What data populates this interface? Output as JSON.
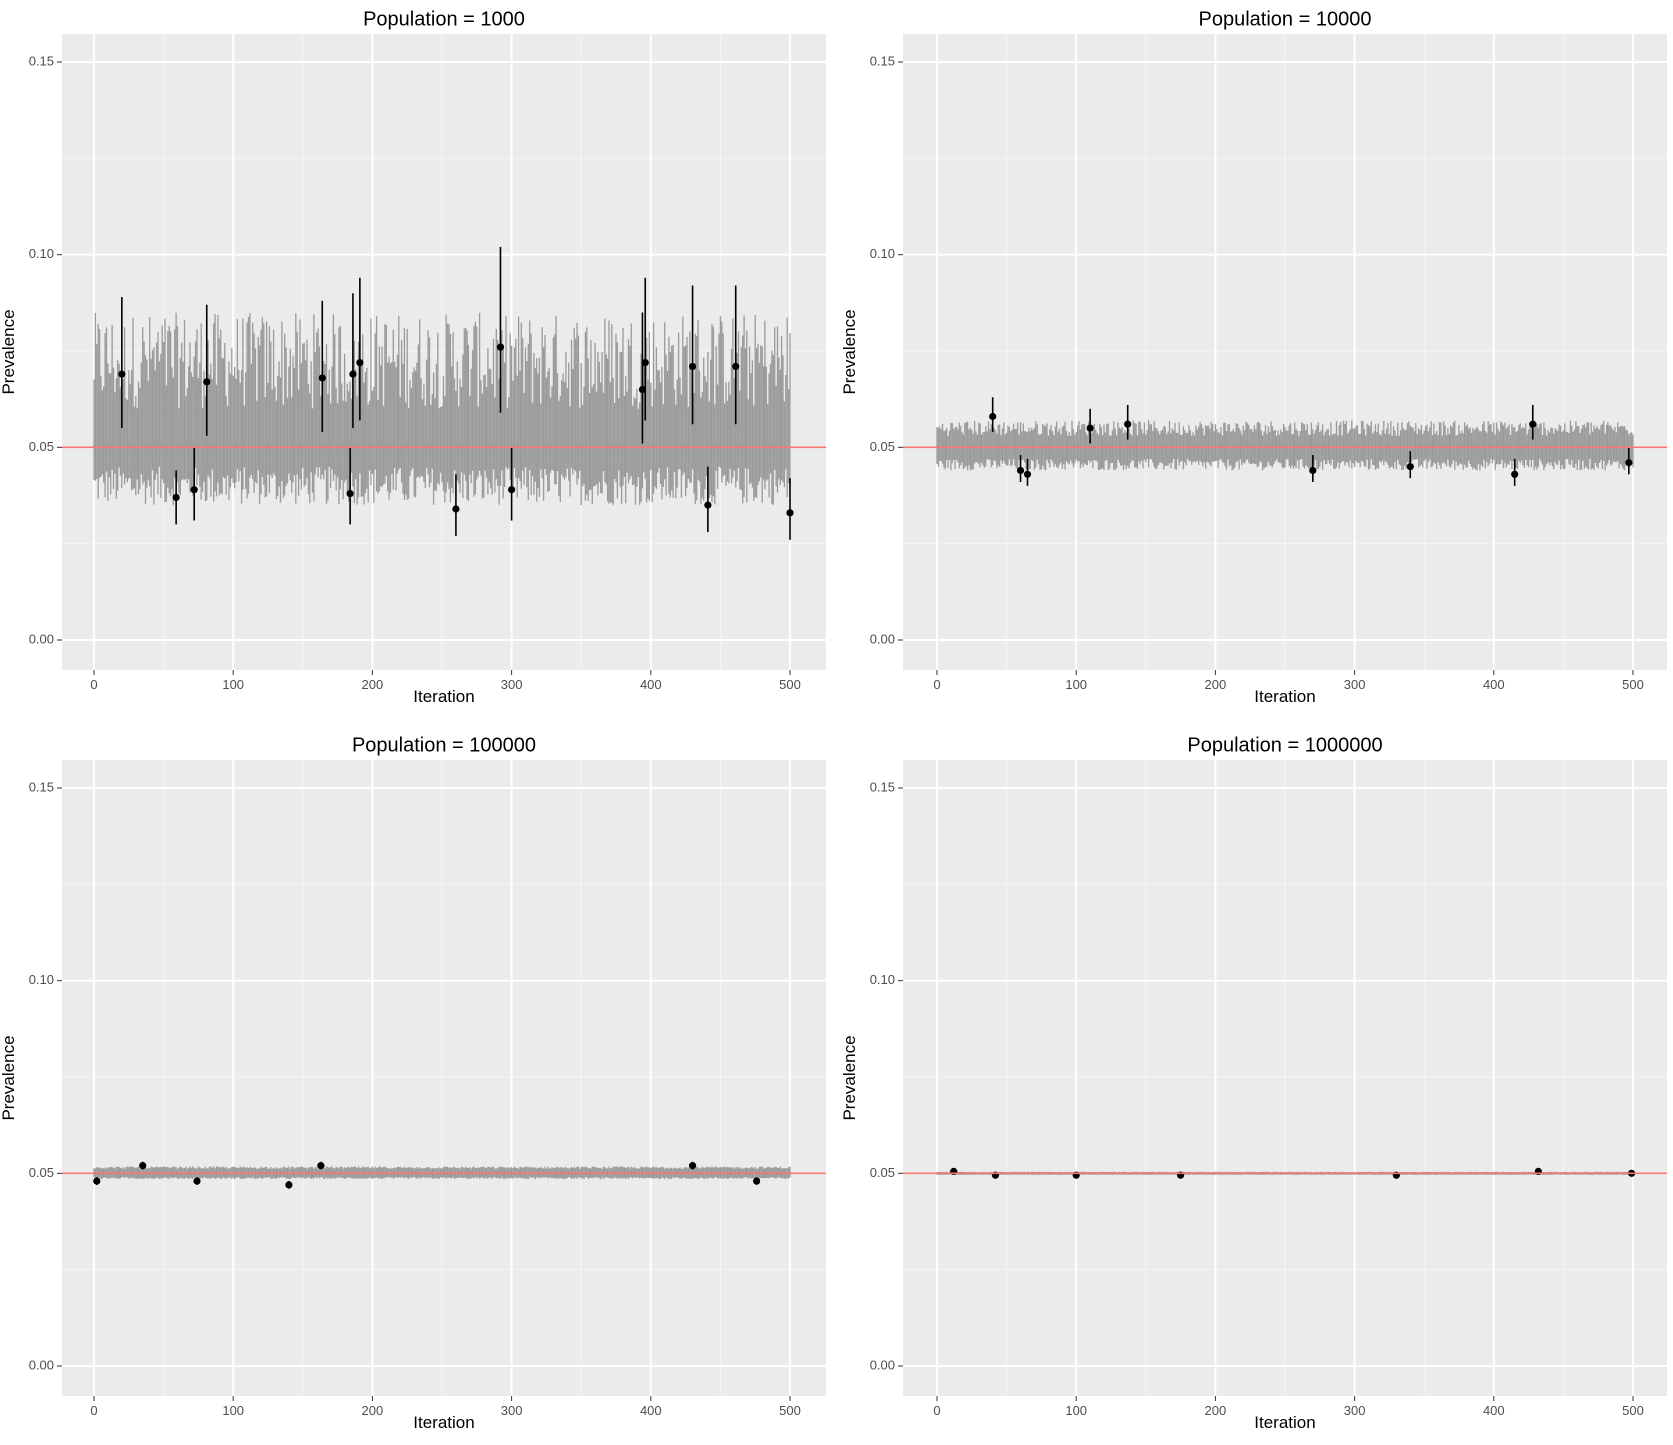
{
  "figure": {
    "colors": {
      "panel_background": "#ebebeb",
      "grid": "#ffffff",
      "band": "#9a9a9a",
      "point": "#000000",
      "reference_line": "#f8766d",
      "tick_text": "#4d4d4d"
    }
  },
  "chart_data": [
    {
      "type": "scatter",
      "title": "Population = 1000",
      "xlabel": "Iteration",
      "ylabel": "Prevalence",
      "xlim": [
        0,
        500
      ],
      "ylim": [
        0.0,
        0.15
      ],
      "x_ticks": [
        "0",
        "100",
        "200",
        "300",
        "400",
        "500"
      ],
      "y_ticks": [
        "0.00",
        "0.05",
        "0.10",
        "0.15"
      ],
      "grid": true,
      "reference_line": 0.05,
      "band": {
        "lower": [
          0.035,
          0.045
        ],
        "upper": [
          0.06,
          0.085
        ]
      },
      "points": [
        {
          "x": 20,
          "y": 0.069,
          "lo": 0.055,
          "hi": 0.089
        },
        {
          "x": 59,
          "y": 0.037,
          "lo": 0.03,
          "hi": 0.044
        },
        {
          "x": 72,
          "y": 0.039,
          "lo": 0.031,
          "hi": 0.05
        },
        {
          "x": 81,
          "y": 0.067,
          "lo": 0.053,
          "hi": 0.087
        },
        {
          "x": 164,
          "y": 0.068,
          "lo": 0.054,
          "hi": 0.088
        },
        {
          "x": 184,
          "y": 0.038,
          "lo": 0.03,
          "hi": 0.05
        },
        {
          "x": 186,
          "y": 0.069,
          "lo": 0.055,
          "hi": 0.09
        },
        {
          "x": 191,
          "y": 0.072,
          "lo": 0.057,
          "hi": 0.094
        },
        {
          "x": 260,
          "y": 0.034,
          "lo": 0.027,
          "hi": 0.043
        },
        {
          "x": 292,
          "y": 0.076,
          "lo": 0.059,
          "hi": 0.102
        },
        {
          "x": 300,
          "y": 0.039,
          "lo": 0.031,
          "hi": 0.05
        },
        {
          "x": 394,
          "y": 0.065,
          "lo": 0.051,
          "hi": 0.085
        },
        {
          "x": 396,
          "y": 0.072,
          "lo": 0.057,
          "hi": 0.094
        },
        {
          "x": 430,
          "y": 0.071,
          "lo": 0.056,
          "hi": 0.092
        },
        {
          "x": 441,
          "y": 0.035,
          "lo": 0.028,
          "hi": 0.045
        },
        {
          "x": 461,
          "y": 0.071,
          "lo": 0.056,
          "hi": 0.092
        },
        {
          "x": 500,
          "y": 0.033,
          "lo": 0.026,
          "hi": 0.042
        }
      ]
    },
    {
      "type": "scatter",
      "title": "Population = 10000",
      "xlabel": "Iteration",
      "ylabel": "Prevalence",
      "xlim": [
        0,
        500
      ],
      "ylim": [
        0.0,
        0.15
      ],
      "x_ticks": [
        "0",
        "100",
        "200",
        "300",
        "400",
        "500"
      ],
      "y_ticks": [
        "0.00",
        "0.05",
        "0.10",
        "0.15"
      ],
      "grid": true,
      "reference_line": 0.05,
      "band": {
        "lower": [
          0.044,
          0.047
        ],
        "upper": [
          0.053,
          0.057
        ]
      },
      "points": [
        {
          "x": 40,
          "y": 0.058,
          "lo": 0.054,
          "hi": 0.063
        },
        {
          "x": 60,
          "y": 0.044,
          "lo": 0.041,
          "hi": 0.048
        },
        {
          "x": 65,
          "y": 0.043,
          "lo": 0.04,
          "hi": 0.047
        },
        {
          "x": 110,
          "y": 0.055,
          "lo": 0.051,
          "hi": 0.06
        },
        {
          "x": 137,
          "y": 0.056,
          "lo": 0.052,
          "hi": 0.061
        },
        {
          "x": 270,
          "y": 0.044,
          "lo": 0.041,
          "hi": 0.048
        },
        {
          "x": 340,
          "y": 0.045,
          "lo": 0.042,
          "hi": 0.049
        },
        {
          "x": 415,
          "y": 0.043,
          "lo": 0.04,
          "hi": 0.047
        },
        {
          "x": 428,
          "y": 0.056,
          "lo": 0.052,
          "hi": 0.061
        },
        {
          "x": 497,
          "y": 0.046,
          "lo": 0.043,
          "hi": 0.05
        }
      ]
    },
    {
      "type": "scatter",
      "title": "Population = 100000",
      "xlabel": "Iteration",
      "ylabel": "Prevalence",
      "xlim": [
        0,
        500
      ],
      "ylim": [
        0.0,
        0.15
      ],
      "x_ticks": [
        "0",
        "100",
        "200",
        "300",
        "400",
        "500"
      ],
      "y_ticks": [
        "0.00",
        "0.05",
        "0.10",
        "0.15"
      ],
      "grid": true,
      "reference_line": 0.05,
      "band": {
        "lower": [
          0.0485,
          0.049
        ],
        "upper": [
          0.0512,
          0.0518
        ]
      },
      "points": [
        {
          "x": 2,
          "y": 0.048,
          "lo": 0.047,
          "hi": 0.049
        },
        {
          "x": 35,
          "y": 0.052,
          "lo": 0.051,
          "hi": 0.053
        },
        {
          "x": 74,
          "y": 0.048,
          "lo": 0.047,
          "hi": 0.049
        },
        {
          "x": 140,
          "y": 0.047,
          "lo": 0.046,
          "hi": 0.048
        },
        {
          "x": 163,
          "y": 0.052,
          "lo": 0.051,
          "hi": 0.053
        },
        {
          "x": 430,
          "y": 0.052,
          "lo": 0.051,
          "hi": 0.053
        },
        {
          "x": 476,
          "y": 0.048,
          "lo": 0.047,
          "hi": 0.049
        }
      ]
    },
    {
      "type": "scatter",
      "title": "Population = 1000000",
      "xlabel": "Iteration",
      "ylabel": "Prevalence",
      "xlim": [
        0,
        500
      ],
      "ylim": [
        0.0,
        0.15
      ],
      "x_ticks": [
        "0",
        "100",
        "200",
        "300",
        "400",
        "500"
      ],
      "y_ticks": [
        "0.00",
        "0.05",
        "0.10",
        "0.15"
      ],
      "grid": true,
      "reference_line": 0.05,
      "band": {
        "lower": [
          0.0496,
          0.0497
        ],
        "upper": [
          0.0503,
          0.0504
        ]
      },
      "points": [
        {
          "x": 12,
          "y": 0.0505,
          "lo": 0.0502,
          "hi": 0.0508
        },
        {
          "x": 42,
          "y": 0.0495,
          "lo": 0.0492,
          "hi": 0.0498
        },
        {
          "x": 100,
          "y": 0.0495,
          "lo": 0.0492,
          "hi": 0.0498
        },
        {
          "x": 175,
          "y": 0.0495,
          "lo": 0.0492,
          "hi": 0.0498
        },
        {
          "x": 330,
          "y": 0.0495,
          "lo": 0.0492,
          "hi": 0.0498
        },
        {
          "x": 432,
          "y": 0.0505,
          "lo": 0.0502,
          "hi": 0.0508
        },
        {
          "x": 499,
          "y": 0.05,
          "lo": 0.0497,
          "hi": 0.0503
        }
      ]
    }
  ]
}
